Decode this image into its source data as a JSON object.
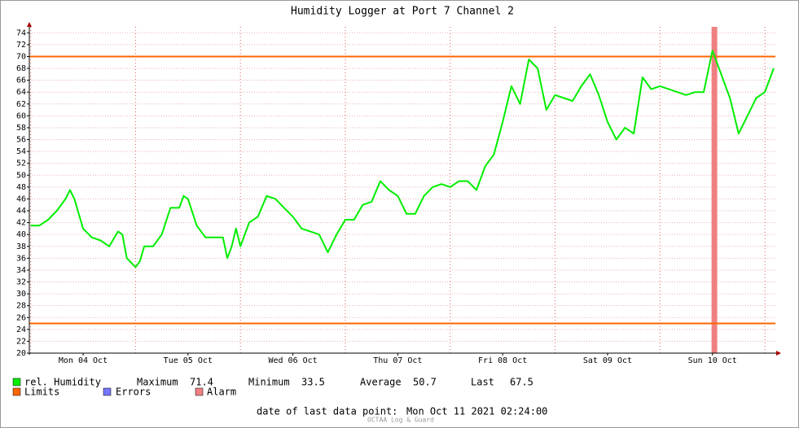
{
  "chart_data": {
    "type": "line",
    "title": "Humidity Logger at Port 7 Channel 2",
    "xlim": [
      -0.3,
      170.4
    ],
    "xticks": [
      {
        "value": 12,
        "label": "Mon 04 Oct"
      },
      {
        "value": 36,
        "label": "Tue 05 Oct"
      },
      {
        "value": 60,
        "label": "Wed 06 Oct"
      },
      {
        "value": 84,
        "label": "Thu 07 Oct"
      },
      {
        "value": 108,
        "label": "Fri 08 Oct"
      },
      {
        "value": 132,
        "label": "Sat 09 Oct"
      },
      {
        "value": 156,
        "label": "Sun 10 Oct"
      }
    ],
    "xgrid": [
      0,
      24,
      48,
      72,
      96,
      120,
      144,
      168
    ],
    "ylim": [
      20,
      75
    ],
    "yticks": [
      20,
      22,
      24,
      26,
      28,
      30,
      32,
      34,
      36,
      38,
      40,
      42,
      44,
      46,
      48,
      50,
      52,
      54,
      56,
      58,
      60,
      62,
      64,
      66,
      68,
      70,
      72,
      74
    ],
    "grid": true,
    "x": [
      0,
      2,
      4,
      6,
      8,
      9,
      10,
      12,
      14,
      16,
      18,
      20,
      21,
      22,
      24,
      25,
      26,
      28,
      30,
      32,
      34,
      35,
      36,
      38,
      40,
      42,
      44,
      45,
      46,
      47,
      48,
      50,
      52,
      54,
      56,
      58,
      60,
      62,
      64,
      66,
      68,
      70,
      72,
      74,
      76,
      78,
      80,
      82,
      84,
      86,
      88,
      90,
      92,
      94,
      96,
      98,
      100,
      102,
      104,
      106,
      108,
      110,
      112,
      114,
      116,
      118,
      120,
      122,
      124,
      126,
      128,
      130,
      132,
      134,
      136,
      138,
      140,
      142,
      144,
      146,
      148,
      150,
      152,
      154,
      156,
      158,
      160,
      162,
      164,
      166,
      168,
      170
    ],
    "series": [
      {
        "name": "rel. Humidity",
        "color": "#00ee00",
        "values": [
          41.5,
          41.5,
          42.5,
          44,
          46,
          47.5,
          46,
          41,
          39.5,
          39,
          38,
          40.5,
          40,
          36,
          34.5,
          35.5,
          38,
          38,
          40,
          44.5,
          44.5,
          46.5,
          46,
          41.5,
          39.5,
          39.5,
          39.5,
          36,
          38,
          41,
          38,
          42,
          43,
          46.5,
          46,
          44.5,
          43,
          41,
          40.5,
          40,
          37,
          40,
          42.5,
          42.5,
          45,
          45.5,
          49,
          47.5,
          46.5,
          43.5,
          43.5,
          46.5,
          48,
          48.5,
          48,
          49,
          49,
          47.5,
          51.5,
          53.5,
          59,
          65,
          62,
          69.5,
          68,
          61,
          63.5,
          63,
          62.5,
          65,
          67,
          63.5,
          59,
          56,
          58,
          57,
          66.5,
          64.5,
          65,
          64.5,
          64,
          63.5,
          64,
          64,
          71,
          67,
          63,
          57,
          60,
          63,
          64,
          68
        ]
      }
    ],
    "limits": {
      "name": "Limits",
      "color": "#ff6600",
      "values": [
        70,
        25
      ]
    },
    "errors": {
      "name": "Errors",
      "color": "#7777ff"
    },
    "alarm": {
      "name": "Alarm",
      "color": "#f08080",
      "ranges": [
        [
          155.8,
          157.1
        ]
      ]
    },
    "stats": [
      {
        "label": "Maximum",
        "value": 71.4
      },
      {
        "label": "Minimum",
        "value": 33.5
      },
      {
        "label": "Average",
        "value": 50.7
      },
      {
        "label": "Last",
        "value": 67.5
      }
    ],
    "last_point_label": "date of last data point:",
    "last_point": "Mon Oct 11 2021 02:24:00",
    "footer": "OCTAA Log & Guard"
  }
}
